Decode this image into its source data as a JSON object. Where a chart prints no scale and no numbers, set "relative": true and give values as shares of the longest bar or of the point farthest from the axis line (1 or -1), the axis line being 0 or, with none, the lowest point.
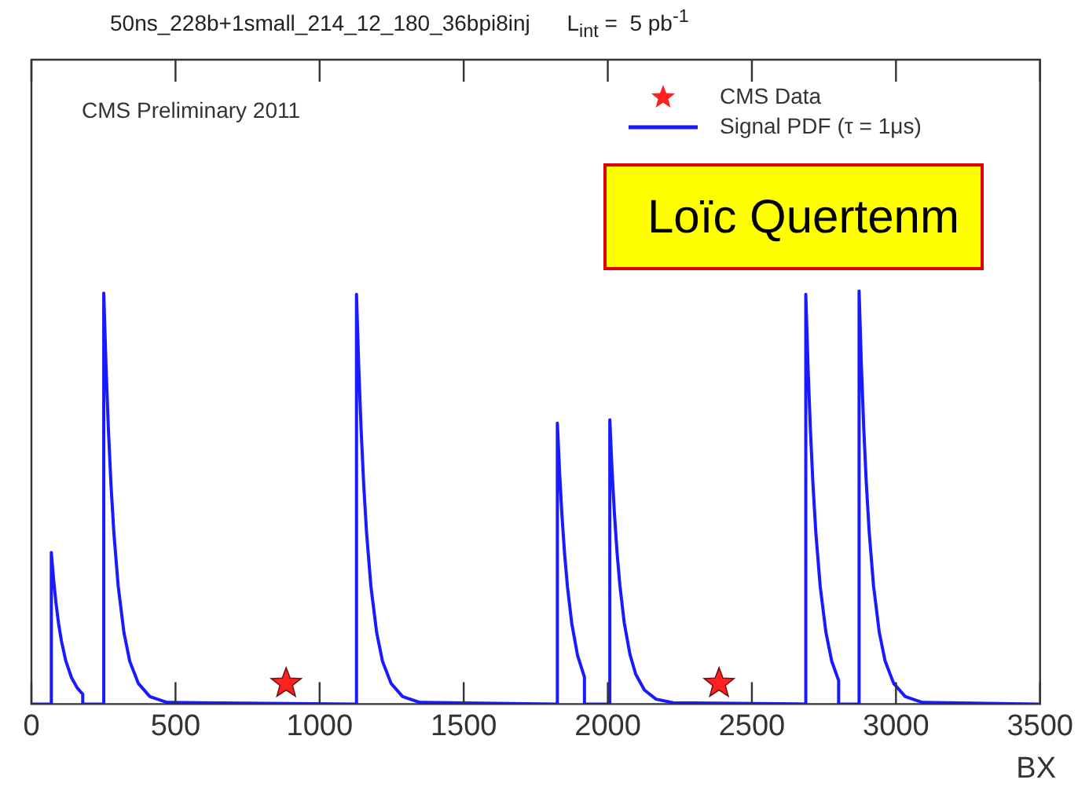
{
  "chart_data": {
    "type": "line",
    "title": "50ns_228b+1small_214_12_180_36bpi8inj      L$_{int}$ =  5 pb$^{-1}$",
    "xlabel": "BX",
    "relative": true,
    "xlim": [
      0,
      3500
    ],
    "xticks": [
      0,
      500,
      1000,
      1500,
      2000,
      2500,
      3000,
      3500
    ],
    "tick_labels": "x",
    "grid": false,
    "legend": "top right",
    "annotations": [
      "CMS Preliminary 2011",
      "Loïc Quertenm"
    ],
    "series": [
      {
        "name": "CMS Data",
        "type": "scatter",
        "marker": "star",
        "color": "#ff2020",
        "x": [
          884,
          2386
        ],
        "values": [
          0.05,
          0.05
        ]
      },
      {
        "name": "Signal PDF (τ = 1μs)",
        "marker": "none",
        "line_style": "solid",
        "color": "#1a1aff",
        "x": [
          0,
          69,
          69,
          77,
          85,
          94,
          104,
          119,
          139,
          159,
          178,
          178,
          251,
          251,
          259,
          267,
          276,
          286,
          301,
          321,
          341,
          371,
          411,
          471,
          1128,
          1128,
          1136,
          1144,
          1153,
          1163,
          1178,
          1198,
          1218,
          1248,
          1288,
          1348,
          1825,
          1825,
          1833,
          1841,
          1850,
          1860,
          1875,
          1895,
          1919,
          1919,
          2007,
          2007,
          2015,
          2023,
          2032,
          2042,
          2057,
          2077,
          2097,
          2127,
          2167,
          2227,
          2687,
          2687,
          2695,
          2703,
          2712,
          2722,
          2737,
          2757,
          2777,
          2801,
          2801,
          2872,
          2872,
          2880,
          2888,
          2897,
          2907,
          2922,
          2942,
          2962,
          2992,
          3032,
          3092,
          3500
        ],
        "values": [
          0,
          0,
          0.367,
          0.301,
          0.246,
          0.196,
          0.153,
          0.105,
          0.064,
          0.039,
          0.024,
          0,
          0,
          0.995,
          0.815,
          0.667,
          0.532,
          0.415,
          0.286,
          0.173,
          0.104,
          0.05,
          0.018,
          0.004,
          0,
          0.992,
          0.812,
          0.665,
          0.531,
          0.414,
          0.285,
          0.173,
          0.104,
          0.05,
          0.018,
          0.004,
          0,
          0.68,
          0.557,
          0.456,
          0.364,
          0.284,
          0.195,
          0.118,
          0.065,
          0,
          0,
          0.688,
          0.563,
          0.461,
          0.368,
          0.287,
          0.197,
          0.12,
          0.072,
          0.034,
          0.012,
          0.003,
          0,
          0.992,
          0.812,
          0.665,
          0.531,
          0.414,
          0.285,
          0.173,
          0.104,
          0.057,
          0,
          0,
          1,
          0.819,
          0.67,
          0.535,
          0.417,
          0.287,
          0.174,
          0.105,
          0.05,
          0.018,
          0.004,
          0
        ]
      }
    ]
  }
}
